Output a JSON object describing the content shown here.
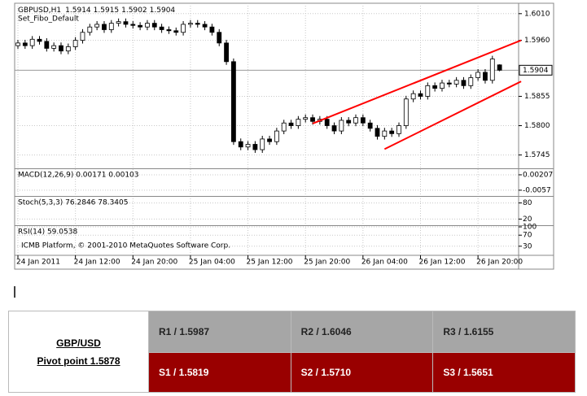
{
  "chart_data": {
    "type": "candlestick",
    "symbol": "GBPUSD,H1",
    "subtitle": "Set_Fibo_Default",
    "categories": [
      "24 Jan 2011",
      null,
      null,
      null,
      null,
      null,
      null,
      null,
      "24 Jan 12:00",
      null,
      null,
      null,
      null,
      null,
      null,
      null,
      "24 Jan 20:00",
      null,
      null,
      null,
      null,
      null,
      null,
      null,
      "25 Jan 04:00",
      null,
      null,
      null,
      null,
      null,
      null,
      null,
      "25 Jan 12:00",
      null,
      null,
      null,
      null,
      null,
      null,
      null,
      "25 Jan 20:00",
      null,
      null,
      null,
      null,
      null,
      null,
      null,
      "26 Jan 04:00",
      null,
      null,
      null,
      null,
      null,
      null,
      null,
      "26 Jan 12:00",
      null,
      null,
      null,
      null,
      null,
      null,
      null,
      "26 Jan 20:00",
      null,
      null,
      null
    ],
    "open": [
      1.595,
      1.5955,
      1.595,
      1.5962,
      1.5958,
      1.5945,
      1.595,
      1.594,
      1.5948,
      1.596,
      1.5975,
      1.5985,
      1.599,
      1.598,
      1.5992,
      1.5995,
      1.599,
      1.5988,
      1.5985,
      1.5992,
      1.5985,
      1.598,
      1.5978,
      1.5975,
      1.599,
      1.5992,
      1.599,
      1.5985,
      1.5975,
      1.5955,
      1.592,
      1.577,
      1.576,
      1.5765,
      1.5755,
      1.5775,
      1.577,
      1.579,
      1.5805,
      1.58,
      1.5812,
      1.5815,
      1.5808,
      1.5812,
      1.58,
      1.579,
      1.581,
      1.5805,
      1.5815,
      1.5805,
      1.5795,
      1.578,
      1.579,
      1.5785,
      1.58,
      1.585,
      1.586,
      1.5855,
      1.5875,
      1.587,
      1.588,
      1.5878,
      1.5885,
      1.5875,
      1.589,
      1.59,
      1.5885,
      1.5914
    ],
    "high": [
      1.5961,
      1.5961,
      1.5968,
      1.5968,
      1.5964,
      1.5956,
      1.5956,
      1.5954,
      1.5966,
      1.5981,
      1.5991,
      1.5996,
      1.5996,
      1.5998,
      1.6001,
      1.6001,
      1.5996,
      1.5994,
      1.5998,
      1.5998,
      1.5991,
      1.5986,
      1.5984,
      1.5996,
      1.5998,
      1.5998,
      1.5996,
      1.5991,
      1.5981,
      1.5961,
      1.5926,
      1.5776,
      1.5771,
      1.5771,
      1.5781,
      1.5781,
      1.5796,
      1.5811,
      1.5811,
      1.5818,
      1.5821,
      1.5821,
      1.5818,
      1.5818,
      1.5806,
      1.5816,
      1.5816,
      1.5821,
      1.5821,
      1.5811,
      1.5801,
      1.5796,
      1.5796,
      1.5806,
      1.5856,
      1.5866,
      1.5866,
      1.5881,
      1.5881,
      1.5886,
      1.5886,
      1.5891,
      1.5891,
      1.5896,
      1.5906,
      1.5906,
      1.5931,
      1.5915
    ],
    "low": [
      1.5944,
      1.5944,
      1.5944,
      1.5952,
      1.5939,
      1.5939,
      1.5934,
      1.5934,
      1.5942,
      1.5954,
      1.5969,
      1.5979,
      1.5974,
      1.5974,
      1.5986,
      1.5984,
      1.5982,
      1.5979,
      1.5979,
      1.5979,
      1.5974,
      1.5972,
      1.5969,
      1.5969,
      1.5984,
      1.5984,
      1.5979,
      1.5969,
      1.5949,
      1.5914,
      1.5764,
      1.5754,
      1.5754,
      1.5749,
      1.5749,
      1.5764,
      1.5764,
      1.5784,
      1.5794,
      1.5794,
      1.5806,
      1.5802,
      1.5802,
      1.5794,
      1.5784,
      1.5784,
      1.5799,
      1.5799,
      1.5799,
      1.5789,
      1.5774,
      1.5774,
      1.5779,
      1.5779,
      1.5794,
      1.5844,
      1.5849,
      1.5849,
      1.5864,
      1.5864,
      1.5872,
      1.5872,
      1.5869,
      1.5869,
      1.5884,
      1.5879,
      1.5879,
      1.5902
    ],
    "close": [
      1.5955,
      1.595,
      1.5962,
      1.5958,
      1.5945,
      1.595,
      1.594,
      1.5948,
      1.596,
      1.5975,
      1.5985,
      1.599,
      1.598,
      1.5992,
      1.5995,
      1.599,
      1.5988,
      1.5985,
      1.5992,
      1.5985,
      1.598,
      1.5978,
      1.5975,
      1.599,
      1.5992,
      1.599,
      1.5985,
      1.5975,
      1.5955,
      1.592,
      1.577,
      1.576,
      1.5765,
      1.5755,
      1.5775,
      1.577,
      1.579,
      1.5805,
      1.58,
      1.5812,
      1.5815,
      1.5808,
      1.5812,
      1.58,
      1.579,
      1.581,
      1.5805,
      1.5815,
      1.5805,
      1.5795,
      1.578,
      1.579,
      1.5785,
      1.58,
      1.585,
      1.586,
      1.5855,
      1.5875,
      1.587,
      1.588,
      1.5878,
      1.5885,
      1.5875,
      1.589,
      1.59,
      1.5885,
      1.5925,
      1.5904
    ],
    "up_color": "#ffffff",
    "down_color": "#000000",
    "ylim": [
      1.572,
      1.6028
    ],
    "yticks": [
      {
        "value": 1.601,
        "label": "1.6010"
      },
      {
        "value": 1.596,
        "label": "1.5960"
      },
      1.5855,
      {
        "value": 1.58,
        "label": "1.5800"
      },
      1.5745
    ],
    "grid": true,
    "trendlines": [
      {
        "color": "#ff0000",
        "x": [
          41,
          70
        ],
        "y": [
          1.5804,
          1.596
        ]
      },
      {
        "color": "#ff0000",
        "x": [
          51,
          70
        ],
        "y": [
          1.5756,
          1.5883
        ]
      }
    ],
    "panels": [
      {
        "title": "MACD(12,26,9) 0.00171 0.00103",
        "ylim": [
          -0.0082,
          0.00452
        ],
        "yticks": [
          0.00207,
          -0.0057
        ]
      },
      {
        "title": "Stoch(5,3,3) 76.2846 78.3405",
        "ylim": [
          0,
          100
        ],
        "yticks": [
          80,
          20
        ]
      },
      {
        "title": "RSI(14) 59.0538",
        "ylim": [
          0,
          100
        ],
        "yticks": [
          100,
          70,
          30
        ]
      }
    ],
    "footer": "ICMB Platform, © 2001-2010 MetaQuotes Software Corp."
  },
  "table": {
    "title": "GBP/USD",
    "pivot": "Pivot point 1.5878",
    "rows": [
      [
        "R1 / 1.5987",
        "R2 / 1.6046",
        "R3 / 1.6155"
      ],
      [
        "S1 / 1.5819",
        "S2 / 1.5710",
        "S3 / 1.5651"
      ]
    ]
  }
}
